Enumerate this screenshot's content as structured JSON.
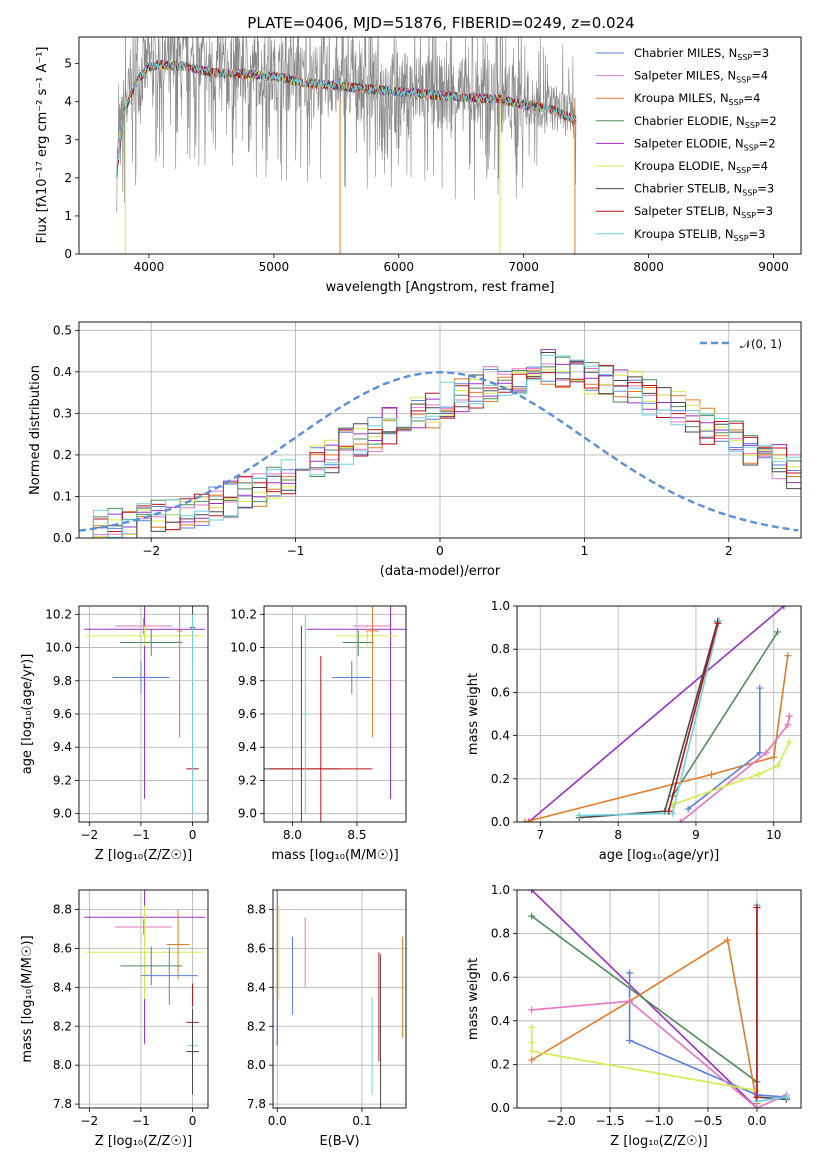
{
  "figure_title": "PLATE=0406, MJD=51876, FIBERID=0249, z=0.024",
  "colors": {
    "Chabrier MILES": "#5b7fdc",
    "Salpeter MILES": "#e377c2",
    "Kroupa MILES": "#e07b2a",
    "Chabrier ELODIE": "#528b5c",
    "Salpeter ELODIE": "#9b30c8",
    "Kroupa ELODIE": "#d6ea4a",
    "Chabrier STELIB": "#4a4a4a",
    "Salpeter STELIB": "#b8151d",
    "Kroupa STELIB": "#6fd3dc",
    "data": "#8a8a8a",
    "normal": "#5b8fd8"
  },
  "chart_data": [
    {
      "id": "spectrum",
      "type": "line",
      "ylabel_prefix": "Flux [f",
      "ylabel_sub": "λ",
      "ylabel_main": "10",
      "ylabel_units": " erg cm",
      "ylabel_tail": " s",
      "ylabel_end": " A",
      "ylabel_text": "Flux [fλ10⁻¹⁷ erg cm⁻² s⁻¹ A⁻¹]",
      "xlabel": "wavelength [Angstrom, rest frame]",
      "xlim": [
        3440,
        9220
      ],
      "ylim": [
        0,
        5.7
      ],
      "xticks": [
        4000,
        5000,
        6000,
        7000,
        8000,
        9000
      ],
      "yticks": [
        0,
        1,
        2,
        3,
        4,
        5
      ],
      "data_range": [
        3740,
        7420
      ],
      "continuum": {
        "x": [
          3740,
          3800,
          3900,
          4000,
          4100,
          4300,
          4500,
          4800,
          5000,
          5200,
          5500,
          5800,
          6000,
          6300,
          6500,
          6800,
          7000,
          7200,
          7420
        ],
        "y": [
          2.2,
          3.8,
          4.6,
          5.0,
          5.05,
          5.0,
          4.85,
          4.8,
          4.75,
          4.6,
          4.5,
          4.4,
          4.35,
          4.25,
          4.2,
          4.15,
          4.0,
          3.9,
          3.6
        ]
      },
      "legend": [
        {
          "label": "Chabrier MILES, N",
          "sub": "SSP",
          "tail": "=3",
          "color_key": "Chabrier MILES"
        },
        {
          "label": "Salpeter MILES, N",
          "sub": "SSP",
          "tail": "=4",
          "color_key": "Salpeter MILES"
        },
        {
          "label": "Kroupa MILES, N",
          "sub": "SSP",
          "tail": "=4",
          "color_key": "Kroupa MILES"
        },
        {
          "label": "Chabrier ELODIE, N",
          "sub": "SSP",
          "tail": "=2",
          "color_key": "Chabrier ELODIE"
        },
        {
          "label": "Salpeter ELODIE, N",
          "sub": "SSP",
          "tail": "=2",
          "color_key": "Salpeter ELODIE"
        },
        {
          "label": "Kroupa ELODIE, N",
          "sub": "SSP",
          "tail": "=4",
          "color_key": "Kroupa ELODIE"
        },
        {
          "label": "Chabrier STELIB, N",
          "sub": "SSP",
          "tail": "=3",
          "color_key": "Chabrier STELIB"
        },
        {
          "label": "Salpeter STELIB, N",
          "sub": "SSP",
          "tail": "=3",
          "color_key": "Salpeter STELIB"
        },
        {
          "label": "Kroupa STELIB, N",
          "sub": "SSP",
          "tail": "=3",
          "color_key": "Kroupa STELIB"
        }
      ]
    },
    {
      "id": "residuals",
      "type": "histogram",
      "xlabel": "(data-model)/error",
      "ylabel": "Normed distribution",
      "xlim": [
        -2.5,
        2.5
      ],
      "ylim": [
        0,
        0.52
      ],
      "xticks": [
        -2,
        -1,
        0,
        1,
        2
      ],
      "xticklabels": [
        "−2",
        "−1",
        "0",
        "1",
        "2"
      ],
      "yticks": [
        0.0,
        0.1,
        0.2,
        0.3,
        0.4,
        0.5
      ],
      "yticklabels": [
        "0.0",
        "0.1",
        "0.2",
        "0.3",
        "0.4",
        "0.5"
      ],
      "grid": true,
      "legend_label": "𝒩(0, 1)",
      "bin_width": 0.1,
      "bin_start": -2.5,
      "reference_hist": [
        0.02,
        0.025,
        0.03,
        0.035,
        0.04,
        0.05,
        0.06,
        0.065,
        0.07,
        0.08,
        0.095,
        0.11,
        0.12,
        0.14,
        0.15,
        0.17,
        0.19,
        0.2,
        0.22,
        0.24,
        0.25,
        0.27,
        0.28,
        0.3,
        0.31,
        0.33,
        0.34,
        0.35,
        0.37,
        0.38,
        0.39,
        0.4,
        0.41,
        0.4,
        0.39,
        0.385,
        0.38,
        0.37,
        0.36,
        0.34,
        0.33,
        0.31,
        0.29,
        0.27,
        0.26,
        0.24,
        0.22,
        0.2,
        0.18,
        0.16,
        0.15,
        0.13,
        0.12,
        0.1,
        0.09,
        0.08,
        0.07,
        0.06,
        0.05,
        0.04,
        0.035,
        0.03,
        0.025,
        0.02,
        0.018
      ],
      "series": [
        {
          "name": "Chabrier MILES",
          "color_key": "Chabrier MILES"
        },
        {
          "name": "Salpeter MILES",
          "color_key": "Salpeter MILES"
        },
        {
          "name": "Kroupa MILES",
          "color_key": "Kroupa MILES"
        },
        {
          "name": "Chabrier ELODIE",
          "color_key": "Chabrier ELODIE"
        },
        {
          "name": "Salpeter ELODIE",
          "color_key": "Salpeter ELODIE"
        },
        {
          "name": "Kroupa ELODIE",
          "color_key": "Kroupa ELODIE"
        },
        {
          "name": "Chabrier STELIB",
          "color_key": "Chabrier STELIB"
        },
        {
          "name": "Salpeter STELIB",
          "color_key": "Salpeter STELIB"
        },
        {
          "name": "Kroupa STELIB",
          "color_key": "Kroupa STELIB"
        }
      ]
    },
    {
      "id": "age_vs_Z",
      "type": "scatter",
      "xlabel": "Z [log₁₀(Z/Z☉)]",
      "ylabel": "age  [log₁₀(age/yr)]",
      "xlim": [
        -2.2,
        0.3
      ],
      "ylim": [
        8.95,
        10.25
      ],
      "xticks": [
        -2,
        -1,
        0
      ],
      "xticklabels": [
        "−2",
        "−1",
        "0"
      ],
      "yticks": [
        9.0,
        9.2,
        9.4,
        9.6,
        9.8,
        10.0,
        10.2
      ],
      "yticklabels": [
        "9.0",
        "9.2",
        "9.4",
        "9.6",
        "9.8",
        "10.0",
        "10.2"
      ],
      "grid": true,
      "points": [
        {
          "series": "Salpeter ELODIE",
          "x": -0.93,
          "xerr": 1.17,
          "y": 10.11,
          "yerr": 1.02
        },
        {
          "series": "Kroupa ELODIE",
          "x": -0.93,
          "xerr": 1.13,
          "y": 10.07,
          "yerr": 0.06
        },
        {
          "series": "Salpeter MILES",
          "x": -0.95,
          "xerr": 0.55,
          "y": 10.13,
          "yerr": 0.05
        },
        {
          "series": "Chabrier ELODIE",
          "x": -0.8,
          "xerr": 0.6,
          "y": 10.03,
          "yerr": 0.08
        },
        {
          "series": "Chabrier MILES",
          "x": -1.0,
          "xerr": 0.55,
          "y": 9.82,
          "yerr": 0.1
        },
        {
          "series": "Kroupa MILES",
          "x": -0.25,
          "xerr": 0.05,
          "y": 10.1,
          "yerr": 0.64
        },
        {
          "series": "Chabrier STELIB",
          "x": 0.0,
          "xerr": 0.05,
          "y": 10.12,
          "yerr": 0.2
        },
        {
          "series": "Salpeter STELIB",
          "x": 0.0,
          "xerr": 0.12,
          "y": 9.27,
          "yerr": 0.02
        },
        {
          "series": "Kroupa STELIB",
          "x": 0.0,
          "xerr": 0.03,
          "y": 9.6,
          "yerr": 0.6
        }
      ]
    },
    {
      "id": "age_vs_mass",
      "type": "scatter",
      "xlabel": "mass [log₁₀(M/M☉)]",
      "xlim": [
        7.78,
        8.88
      ],
      "ylim": [
        8.95,
        10.25
      ],
      "xticks": [
        8.0,
        8.5
      ],
      "xticklabels": [
        "8.0",
        "8.5"
      ],
      "yticks": [
        9.0,
        9.2,
        9.4,
        9.6,
        9.8,
        10.0,
        10.2
      ],
      "yticklabels": [
        "9.0",
        "9.2",
        "9.4",
        "9.6",
        "9.8",
        "10.0",
        "10.2"
      ],
      "grid": true,
      "points": [
        {
          "series": "Salpeter ELODIE",
          "x": 8.76,
          "xerr": 0.65,
          "y": 10.11,
          "yerr": 1.02
        },
        {
          "series": "Kroupa ELODIE",
          "x": 8.58,
          "xerr": 0.24,
          "y": 10.07,
          "yerr": 0.06
        },
        {
          "series": "Salpeter MILES",
          "x": 8.62,
          "xerr": 0.15,
          "y": 10.13,
          "yerr": 0.05
        },
        {
          "series": "Chabrier ELODIE",
          "x": 8.51,
          "xerr": 0.12,
          "y": 10.03,
          "yerr": 0.08
        },
        {
          "series": "Chabrier MILES",
          "x": 8.46,
          "xerr": 0.15,
          "y": 9.82,
          "yerr": 0.1
        },
        {
          "series": "Kroupa MILES",
          "x": 8.62,
          "xerr": 0.05,
          "y": 10.1,
          "yerr": 0.64
        },
        {
          "series": "Chabrier STELIB",
          "x": 8.07,
          "xerr": 0.3,
          "y": 9.27,
          "yerr": 0.86
        },
        {
          "series": "Salpeter STELIB",
          "x": 8.22,
          "xerr": 0.4,
          "y": 9.27,
          "yerr": 0.68
        },
        {
          "series": "Kroupa STELIB",
          "x": 8.1,
          "xerr": 0.03,
          "y": 9.6,
          "yerr": 0.6
        }
      ]
    },
    {
      "id": "mw_vs_age",
      "type": "line",
      "xlabel": "age  [log₁₀(age/yr)]",
      "ylabel": "mass weight",
      "xlim": [
        6.7,
        10.35
      ],
      "ylim": [
        0,
        1.0
      ],
      "xticks": [
        7,
        8,
        9,
        10
      ],
      "xticklabels": [
        "7",
        "8",
        "9",
        "10"
      ],
      "yticks": [
        0.0,
        0.2,
        0.4,
        0.6,
        0.8,
        1.0
      ],
      "yticklabels": [
        "0.0",
        "0.2",
        "0.4",
        "0.6",
        "0.8",
        "1.0"
      ],
      "grid": true,
      "series": [
        {
          "name": "Salpeter ELODIE",
          "x": [
            6.85,
            10.13
          ],
          "y": [
            0.0,
            1.0
          ]
        },
        {
          "name": "Chabrier ELODIE",
          "x": [
            8.7,
            10.05
          ],
          "y": [
            0.12,
            0.88
          ]
        },
        {
          "name": "Kroupa MILES",
          "x": [
            6.8,
            9.2,
            10.0,
            10.18
          ],
          "y": [
            0.0,
            0.22,
            0.3,
            0.77
          ]
        },
        {
          "name": "Chabrier MILES",
          "x": [
            8.9,
            9.82,
            9.82
          ],
          "y": [
            0.06,
            0.32,
            0.62
          ]
        },
        {
          "name": "Salpeter MILES",
          "x": [
            8.8,
            9.9,
            10.18,
            10.2
          ],
          "y": [
            0.0,
            0.32,
            0.45,
            0.49
          ]
        },
        {
          "name": "Kroupa ELODIE",
          "x": [
            8.7,
            9.8,
            10.05,
            10.2
          ],
          "y": [
            0.08,
            0.22,
            0.26,
            0.37
          ]
        },
        {
          "name": "Chabrier STELIB",
          "x": [
            7.5,
            8.6,
            9.28
          ],
          "y": [
            0.02,
            0.05,
            0.93
          ]
        },
        {
          "name": "Kroupa STELIB",
          "x": [
            7.5,
            8.7,
            9.3
          ],
          "y": [
            0.03,
            0.04,
            0.93
          ]
        },
        {
          "name": "Salpeter STELIB",
          "x": [
            8.65,
            9.28
          ],
          "y": [
            0.05,
            0.92
          ]
        }
      ]
    },
    {
      "id": "mass_vs_Z",
      "type": "scatter",
      "xlabel": "Z [log₁₀(Z/Z☉)]",
      "ylabel": "mass [log₁₀(M/M☉)]",
      "xlim": [
        -2.2,
        0.3
      ],
      "ylim": [
        7.78,
        8.9
      ],
      "xticks": [
        -2,
        -1,
        0
      ],
      "xticklabels": [
        "−2",
        "−1",
        "0"
      ],
      "yticks": [
        7.8,
        8.0,
        8.2,
        8.4,
        8.6,
        8.8
      ],
      "yticklabels": [
        "7.8",
        "8.0",
        "8.2",
        "8.4",
        "8.6",
        "8.8"
      ],
      "grid": true,
      "points": [
        {
          "series": "Salpeter ELODIE",
          "x": -0.93,
          "xerr": 1.17,
          "y": 8.76,
          "yerr": 0.65
        },
        {
          "series": "Salpeter MILES",
          "x": -0.95,
          "xerr": 0.55,
          "y": 8.71,
          "yerr": 0.04
        },
        {
          "series": "Kroupa ELODIE",
          "x": -0.93,
          "xerr": 1.13,
          "y": 8.58,
          "yerr": 0.24
        },
        {
          "series": "Kroupa MILES",
          "x": -0.28,
          "xerr": 0.22,
          "y": 8.62,
          "yerr": 0.18
        },
        {
          "series": "Chabrier ELODIE",
          "x": -0.8,
          "xerr": 0.6,
          "y": 8.51,
          "yerr": 0.1
        },
        {
          "series": "Chabrier MILES",
          "x": -0.45,
          "xerr": 0.55,
          "y": 8.46,
          "yerr": 0.15
        },
        {
          "series": "Salpeter STELIB",
          "x": 0.0,
          "xerr": 0.12,
          "y": 8.22,
          "yerr": 0.2
        },
        {
          "series": "Kroupa STELIB",
          "x": 0.0,
          "xerr": 0.1,
          "y": 8.1,
          "yerr": 0.2
        },
        {
          "series": "Chabrier STELIB",
          "x": 0.0,
          "xerr": 0.12,
          "y": 8.07,
          "yerr": 0.22
        }
      ]
    },
    {
      "id": "mass_vs_ebv",
      "type": "scatter",
      "xlabel": "E(B-V)",
      "xlim": [
        -0.005,
        0.152
      ],
      "ylim": [
        7.78,
        8.9
      ],
      "xticks": [
        0.0,
        0.1
      ],
      "xticklabels": [
        "0.0",
        "0.1"
      ],
      "yticks": [
        7.8,
        8.0,
        8.2,
        8.4,
        8.6,
        8.8
      ],
      "yticklabels": [
        "7.8",
        "8.0",
        "8.2",
        "8.4",
        "8.6",
        "8.8"
      ],
      "grid": true,
      "points": [
        {
          "series": "Salpeter ELODIE",
          "x": 0.0,
          "xerr": 0.0,
          "y": 8.5,
          "yerr": 0.4
        },
        {
          "series": "Kroupa ELODIE",
          "x": 0.002,
          "xerr": 0.0,
          "y": 8.58,
          "yerr": 0.24
        },
        {
          "series": "Chabrier MILES",
          "x": 0.018,
          "xerr": 0.0,
          "y": 8.46,
          "yerr": 0.2
        },
        {
          "series": "Salpeter MILES",
          "x": 0.033,
          "xerr": 0.0,
          "y": 8.58,
          "yerr": 0.18
        },
        {
          "series": "Kroupa STELIB",
          "x": 0.112,
          "xerr": 0.0,
          "y": 8.1,
          "yerr": 0.25
        },
        {
          "series": "Salpeter STELIB",
          "x": 0.12,
          "xerr": 0.0,
          "y": 8.3,
          "yerr": 0.28
        },
        {
          "series": "Chabrier STELIB",
          "x": 0.122,
          "xerr": 0.0,
          "y": 8.07,
          "yerr": 0.5
        },
        {
          "series": "Kroupa MILES",
          "x": 0.148,
          "xerr": 0.0,
          "y": 8.4,
          "yerr": 0.26
        }
      ]
    },
    {
      "id": "mw_vs_Z",
      "type": "line",
      "xlabel": "Z [log₁₀(Z/Z☉)]",
      "ylabel": "mass weight",
      "xlim": [
        -2.45,
        0.45
      ],
      "ylim": [
        0,
        1.0
      ],
      "xticks": [
        -2.0,
        -1.5,
        -1.0,
        -0.5,
        0.0
      ],
      "xticklabels": [
        "−2.0",
        "−1.5",
        "−1.0",
        "−0.5",
        "0.0"
      ],
      "yticks": [
        0.0,
        0.2,
        0.4,
        0.6,
        0.8,
        1.0
      ],
      "yticklabels": [
        "0.0",
        "0.2",
        "0.4",
        "0.6",
        "0.8",
        "1.0"
      ],
      "grid": true,
      "series": [
        {
          "name": "Salpeter ELODIE",
          "x": [
            -2.3,
            0.0
          ],
          "y": [
            1.0,
            0.0
          ]
        },
        {
          "name": "Chabrier ELODIE",
          "x": [
            -2.3,
            0.0
          ],
          "y": [
            0.88,
            0.12
          ]
        },
        {
          "name": "Kroupa MILES",
          "x": [
            -2.3,
            -1.3,
            -0.3,
            0.0
          ],
          "y": [
            0.22,
            0.49,
            0.77,
            0.02
          ]
        },
        {
          "name": "Chabrier MILES",
          "x": [
            -1.3,
            -1.3,
            0.0,
            0.3
          ],
          "y": [
            0.62,
            0.31,
            0.06,
            0.05
          ]
        },
        {
          "name": "Salpeter MILES",
          "x": [
            -2.3,
            -1.3,
            0.0,
            0.3
          ],
          "y": [
            0.45,
            0.49,
            0.0,
            0.06
          ]
        },
        {
          "name": "Kroupa ELODIE",
          "x": [
            -2.3,
            -2.3,
            -2.3,
            0.0,
            0.0
          ],
          "y": [
            0.37,
            0.3,
            0.26,
            0.08,
            0.05
          ]
        },
        {
          "name": "Chabrier STELIB",
          "x": [
            0.0,
            0.0,
            0.3
          ],
          "y": [
            0.93,
            0.05,
            0.04
          ]
        },
        {
          "name": "Kroupa STELIB",
          "x": [
            0.0,
            0.0,
            0.3
          ],
          "y": [
            0.93,
            0.03,
            0.05
          ]
        },
        {
          "name": "Salpeter STELIB",
          "x": [
            0.0,
            0.0
          ],
          "y": [
            0.92,
            0.05
          ]
        }
      ]
    }
  ]
}
